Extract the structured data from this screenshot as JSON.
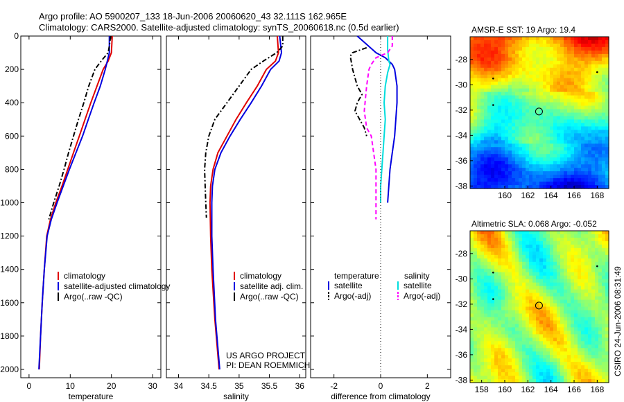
{
  "header": {
    "title_line1": "Argo profile: AO 5900207_133 18-Jun-2006 20060620_43 32.111S 162.965E",
    "title_line2": "Climatology: CARS2000. Satellite-adjusted climatology: synTS_20060618.nc (0.5d earlier)"
  },
  "side_label": "CSIRO 24-Jun-2006 08:31:49",
  "chart_data": [
    {
      "id": "temperature",
      "type": "line",
      "xlabel": "temperature",
      "ylabel": "",
      "xlim": [
        -2,
        32
      ],
      "ylim": [
        2050,
        0
      ],
      "xticks": [
        0,
        10,
        20,
        30
      ],
      "yticks": [
        0,
        200,
        400,
        600,
        800,
        1000,
        1200,
        1400,
        1600,
        1800,
        2000
      ],
      "legend": [
        "climatology",
        "satellite-adjusted climatology",
        "Argo(..raw -QC)"
      ],
      "series": [
        {
          "name": "climatology",
          "color": "#e00000",
          "dash": "",
          "points": [
            [
              20.2,
              0
            ],
            [
              20,
              100
            ],
            [
              19.2,
              150
            ],
            [
              18,
              200
            ],
            [
              16.5,
              300
            ],
            [
              15,
              400
            ],
            [
              13.6,
              500
            ],
            [
              12.2,
              600
            ],
            [
              10.8,
              700
            ],
            [
              9.4,
              800
            ],
            [
              8,
              900
            ],
            [
              6.5,
              1000
            ],
            [
              5.2,
              1100
            ],
            [
              4.3,
              1200
            ],
            [
              3.7,
              1400
            ],
            [
              3.2,
              1600
            ],
            [
              2.8,
              1800
            ],
            [
              2.5,
              2000
            ]
          ]
        },
        {
          "name": "satellite-adjusted climatology",
          "color": "#0000e0",
          "dash": "",
          "points": [
            [
              19.5,
              0
            ],
            [
              19.5,
              100
            ],
            [
              19,
              150
            ],
            [
              18.5,
              200
            ],
            [
              17.3,
              300
            ],
            [
              15.8,
              400
            ],
            [
              14.4,
              500
            ],
            [
              13,
              600
            ],
            [
              11.4,
              700
            ],
            [
              9.8,
              800
            ],
            [
              8.3,
              900
            ],
            [
              6.8,
              1000
            ],
            [
              5.4,
              1100
            ],
            [
              4.4,
              1200
            ],
            [
              3.7,
              1400
            ],
            [
              3.2,
              1600
            ],
            [
              2.8,
              1800
            ],
            [
              2.4,
              2000
            ]
          ]
        },
        {
          "name": "Argo(..raw -QC)",
          "color": "#000000",
          "dash": "7,3,2,3",
          "points": [
            [
              19.8,
              0
            ],
            [
              19.5,
              60
            ],
            [
              19.2,
              100
            ],
            [
              17.5,
              150
            ],
            [
              16,
              200
            ],
            [
              14.5,
              300
            ],
            [
              13.3,
              400
            ],
            [
              12,
              500
            ],
            [
              10.8,
              600
            ],
            [
              9.6,
              700
            ],
            [
              8.5,
              800
            ],
            [
              7.3,
              900
            ],
            [
              6,
              1000
            ],
            [
              4.8,
              1100
            ]
          ]
        }
      ]
    },
    {
      "id": "salinity",
      "type": "line",
      "xlabel": "salinity",
      "ylabel": "",
      "xlim": [
        33.8,
        36.1
      ],
      "ylim": [
        2050,
        0
      ],
      "xticks": [
        34,
        34.5,
        35,
        35.5,
        36
      ],
      "legend": [
        "climatology",
        "satellite adj. clim.",
        "Argo(..raw -QC)"
      ],
      "series": [
        {
          "name": "climatology",
          "color": "#e00000",
          "dash": "",
          "points": [
            [
              35.63,
              0
            ],
            [
              35.65,
              100
            ],
            [
              35.6,
              150
            ],
            [
              35.45,
              200
            ],
            [
              35.3,
              300
            ],
            [
              35.12,
              400
            ],
            [
              34.95,
              500
            ],
            [
              34.8,
              600
            ],
            [
              34.65,
              700
            ],
            [
              34.57,
              800
            ],
            [
              34.53,
              900
            ],
            [
              34.52,
              1000
            ],
            [
              34.53,
              1200
            ],
            [
              34.55,
              1400
            ],
            [
              34.6,
              1700
            ],
            [
              34.67,
              2000
            ]
          ]
        },
        {
          "name": "satellite adj. clim.",
          "color": "#0000e0",
          "dash": "",
          "points": [
            [
              35.67,
              0
            ],
            [
              35.7,
              100
            ],
            [
              35.66,
              150
            ],
            [
              35.52,
              200
            ],
            [
              35.37,
              300
            ],
            [
              35.2,
              400
            ],
            [
              35.02,
              500
            ],
            [
              34.85,
              600
            ],
            [
              34.7,
              700
            ],
            [
              34.6,
              800
            ],
            [
              34.56,
              900
            ],
            [
              34.55,
              1000
            ],
            [
              34.55,
              1200
            ],
            [
              34.57,
              1400
            ],
            [
              34.61,
              1700
            ],
            [
              34.68,
              2000
            ]
          ]
        },
        {
          "name": "Argo(..raw -QC)",
          "color": "#000000",
          "dash": "7,3,2,3",
          "points": [
            [
              35.72,
              0
            ],
            [
              35.72,
              60
            ],
            [
              35.62,
              100
            ],
            [
              35.4,
              150
            ],
            [
              35.2,
              200
            ],
            [
              35.0,
              300
            ],
            [
              34.8,
              400
            ],
            [
              34.6,
              500
            ],
            [
              34.5,
              600
            ],
            [
              34.45,
              700
            ],
            [
              34.43,
              800
            ],
            [
              34.44,
              900
            ],
            [
              34.45,
              1000
            ],
            [
              34.46,
              1090
            ]
          ]
        }
      ],
      "annotation": [
        "US ARGO PROJECT",
        "PI: DEAN ROEMMICH"
      ]
    },
    {
      "id": "difference",
      "type": "line",
      "xlabel": "difference from climatology",
      "ylabel": "",
      "xlim": [
        -3,
        3
      ],
      "ylim": [
        2050,
        0
      ],
      "xticks": [
        -2,
        0,
        2
      ],
      "legend_groups": [
        {
          "title": "temperature",
          "entries": [
            "satellite",
            "Argo(-adj)"
          ]
        },
        {
          "title": "salinity",
          "entries": [
            "satellite",
            "Argo(-adj)"
          ]
        }
      ],
      "series": [
        {
          "name": "temperature satellite",
          "color": "#0000e0",
          "dash": "",
          "points": [
            [
              -1,
              0
            ],
            [
              -0.6,
              50
            ],
            [
              -0.2,
              100
            ],
            [
              0.2,
              130
            ],
            [
              0.5,
              170
            ],
            [
              0.6,
              200
            ],
            [
              0.7,
              300
            ],
            [
              0.7,
              400
            ],
            [
              0.65,
              500
            ],
            [
              0.6,
              600
            ],
            [
              0.5,
              700
            ],
            [
              0.4,
              800
            ],
            [
              0.35,
              900
            ],
            [
              0.3,
              1000
            ]
          ]
        },
        {
          "name": "salinity satellite",
          "color": "#00dddd",
          "dash": "",
          "points": [
            [
              0.3,
              0
            ],
            [
              0.3,
              80
            ],
            [
              0.35,
              150
            ],
            [
              0.4,
              170
            ],
            [
              0.3,
              220
            ],
            [
              0.2,
              300
            ],
            [
              0.15,
              400
            ],
            [
              0.2,
              500
            ],
            [
              0.15,
              600
            ],
            [
              0.1,
              700
            ],
            [
              0.05,
              800
            ],
            [
              0.0,
              900
            ],
            [
              0.0,
              1000
            ]
          ]
        },
        {
          "name": "temperature Argo(-adj)",
          "color": "#000000",
          "dash": "7,3,2,3",
          "points": [
            [
              -0.6,
              70
            ],
            [
              -1.2,
              100
            ],
            [
              -1.3,
              120
            ],
            [
              -1.2,
              200
            ],
            [
              -1.0,
              300
            ],
            [
              -0.8,
              350
            ],
            [
              -1.0,
              400
            ],
            [
              -1.1,
              450
            ],
            [
              -0.9,
              500
            ],
            [
              -0.7,
              550
            ],
            [
              -0.6,
              600
            ]
          ]
        },
        {
          "name": "salinity Argo(-adj)",
          "color": "#ff00ff",
          "dash": "6,4",
          "points": [
            [
              0.5,
              0
            ],
            [
              0.5,
              60
            ],
            [
              0.3,
              100
            ],
            [
              -0.2,
              130
            ],
            [
              -0.4,
              170
            ],
            [
              -0.5,
              200
            ],
            [
              -0.6,
              300
            ],
            [
              -0.7,
              450
            ],
            [
              -0.6,
              550
            ],
            [
              -0.4,
              600
            ],
            [
              -0.3,
              700
            ],
            [
              -0.2,
              800
            ],
            [
              -0.2,
              1000
            ],
            [
              -0.2,
              1100
            ]
          ]
        }
      ]
    },
    {
      "id": "sst_map",
      "type": "heatmap",
      "title": "AMSR-E SST: 19 Argo: 19.4",
      "xticks": [
        160,
        162,
        164,
        166,
        168
      ],
      "yticks": [
        -28,
        -30,
        -32,
        -34,
        -36,
        -38
      ],
      "xlim": [
        157,
        169
      ],
      "ylim": [
        -38.2,
        -26.2
      ],
      "marker": [
        162.965,
        -32.111
      ]
    },
    {
      "id": "sla_map",
      "type": "heatmap",
      "title": "Altimetric SLA: 0.068 Argo: -0.052",
      "xticks": [
        158,
        160,
        162,
        164,
        166,
        168
      ],
      "yticks": [
        -28,
        -30,
        -32,
        -34,
        -36,
        -38
      ],
      "xlim": [
        157,
        169
      ],
      "ylim": [
        -38.2,
        -26.2
      ],
      "marker": [
        162.965,
        -32.111
      ]
    }
  ]
}
